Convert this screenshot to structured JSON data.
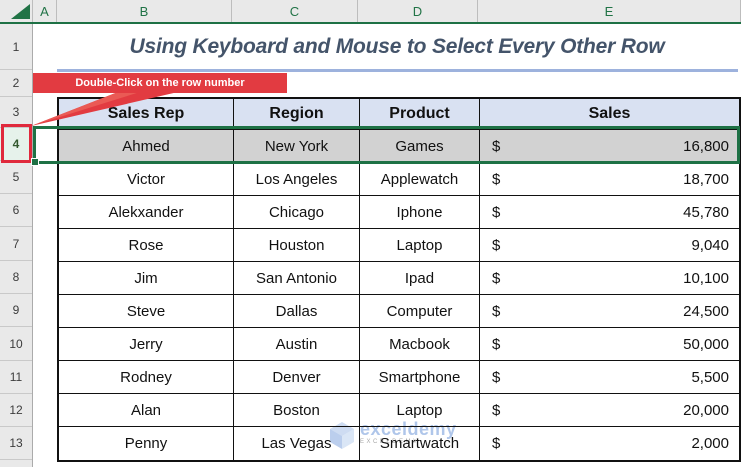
{
  "sheet": {
    "column_headers": [
      "A",
      "B",
      "C",
      "D",
      "E"
    ],
    "row_numbers": [
      "1",
      "2",
      "3",
      "4",
      "5",
      "6",
      "7",
      "8",
      "9",
      "10",
      "11",
      "12",
      "13"
    ],
    "selected_row_number": "4"
  },
  "title": "Using Keyboard and Mouse to Select Every Other Row",
  "callout": {
    "label": "Double-Click on the row number"
  },
  "table": {
    "headers": [
      "Sales Rep",
      "Region",
      "Product",
      "Sales"
    ],
    "currency_symbol": "$",
    "rows": [
      {
        "row": "4",
        "sales_rep": "Ahmed",
        "region": "New York",
        "product": "Games",
        "sales": "16,800",
        "selected": true
      },
      {
        "row": "5",
        "sales_rep": "Victor",
        "region": "Los Angeles",
        "product": "Applewatch",
        "sales": "18,700",
        "selected": false
      },
      {
        "row": "6",
        "sales_rep": "Alekxander",
        "region": "Chicago",
        "product": "Iphone",
        "sales": "45,780",
        "selected": false
      },
      {
        "row": "7",
        "sales_rep": "Rose",
        "region": "Houston",
        "product": "Laptop",
        "sales": "9,040",
        "selected": false
      },
      {
        "row": "8",
        "sales_rep": "Jim",
        "region": "San Antonio",
        "product": "Ipad",
        "sales": "10,100",
        "selected": false
      },
      {
        "row": "9",
        "sales_rep": "Steve",
        "region": "Dallas",
        "product": "Computer",
        "sales": "24,500",
        "selected": false
      },
      {
        "row": "10",
        "sales_rep": "Jerry",
        "region": "Austin",
        "product": "Macbook",
        "sales": "50,000",
        "selected": false
      },
      {
        "row": "11",
        "sales_rep": "Rodney",
        "region": "Denver",
        "product": "Smartphone",
        "sales": "5,500",
        "selected": false
      },
      {
        "row": "12",
        "sales_rep": "Alan",
        "region": "Boston",
        "product": "Laptop",
        "sales": "20,000",
        "selected": false
      },
      {
        "row": "13",
        "sales_rep": "Penny",
        "region": "Las Vegas",
        "product": "Smartwatch",
        "sales": "2,000",
        "selected": false
      }
    ]
  },
  "watermark": {
    "logo": "cube-icon",
    "text": "exceldemy",
    "subtext": "EXCELDEMY"
  },
  "colors": {
    "selection_green": "#1e7145",
    "excel_green": "#217346",
    "annotation_red": "#e23b41",
    "header_fill": "#d9e1f2",
    "selected_row_fill": "#d2d2d2",
    "title_color": "#44546a",
    "title_underline": "#9db2dd",
    "watermark_blue": "#6e96d8"
  }
}
